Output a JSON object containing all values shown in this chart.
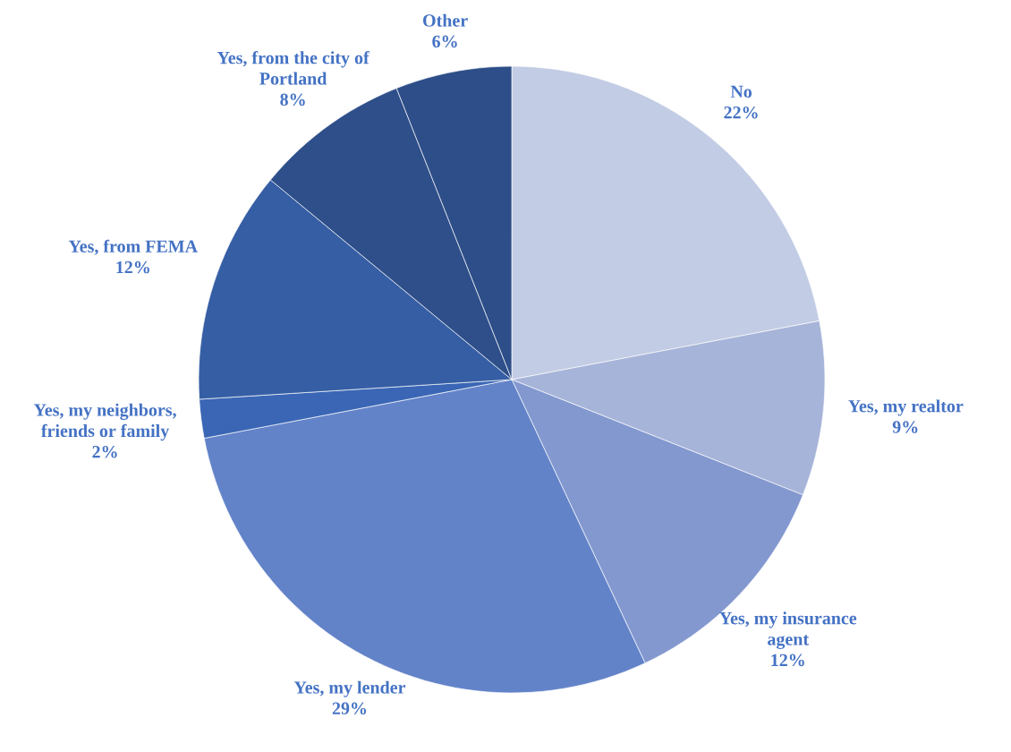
{
  "chart_data": {
    "type": "pie",
    "categories": [
      "No",
      "Yes, my realtor",
      "Yes, my insurance agent",
      "Yes, my lender",
      "Yes, my neighbors, friends or family",
      "Yes, from FEMA",
      "Yes, from the city of Portland",
      "Other"
    ],
    "values": [
      22,
      9,
      12,
      29,
      2,
      12,
      8,
      6
    ],
    "colors": [
      "#c2cce4",
      "#a7b4d9",
      "#8398cf",
      "#6383c9",
      "#3a66b5",
      "#365ea4",
      "#2e4f8a",
      "#2d4e88"
    ],
    "value_labels": [
      "22%",
      "9%",
      "12%",
      "29%",
      "2%",
      "12%",
      "8%",
      "6%"
    ]
  }
}
